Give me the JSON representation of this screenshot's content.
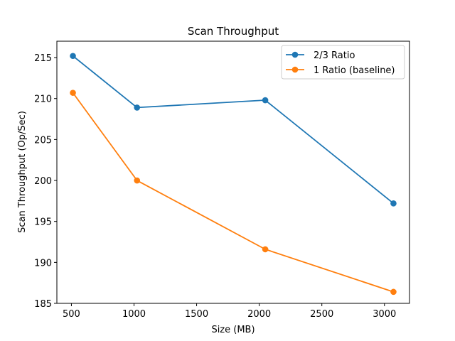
{
  "chart_data": {
    "type": "line",
    "title": "Scan Throughput",
    "xlabel": "Size (MB)",
    "ylabel": "Scan Throughput (Op/Sec)",
    "x": [
      512,
      1024,
      2048,
      3072
    ],
    "xlim": [
      384,
      3200
    ],
    "ylim": [
      185,
      217
    ],
    "xticks": [
      500,
      1000,
      1500,
      2000,
      2500,
      3000
    ],
    "yticks": [
      185,
      190,
      195,
      200,
      205,
      210,
      215
    ],
    "grid": false,
    "legend_position": "top-right",
    "series": [
      {
        "name": "2/3 Ratio",
        "color": "#1f77b4",
        "marker": "circle",
        "values": [
          215.2,
          208.9,
          209.8,
          197.2
        ]
      },
      {
        "name": "1 Ratio (baseline)",
        "color": "#ff7f0e",
        "marker": "circle",
        "values": [
          210.7,
          200.0,
          191.6,
          186.4
        ]
      }
    ]
  }
}
